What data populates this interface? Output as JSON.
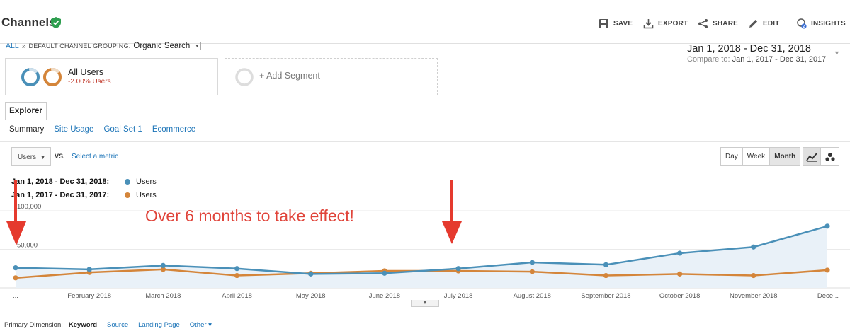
{
  "header": {
    "title": "Channels",
    "buttons": [
      {
        "label": "SAVE",
        "icon": "save-icon"
      },
      {
        "label": "EXPORT",
        "icon": "export-icon"
      },
      {
        "label": "SHARE",
        "icon": "share-icon"
      },
      {
        "label": "EDIT",
        "icon": "edit-icon"
      },
      {
        "label": "INSIGHTS",
        "icon": "insights-icon",
        "badge": "2"
      }
    ]
  },
  "breadcrumb": {
    "all": "ALL",
    "separator": "»",
    "grouping": "DEFAULT CHANNEL GROUPING:",
    "value": "Organic Search"
  },
  "date_range": {
    "current": "Jan 1, 2018 - Dec 31, 2018",
    "compare_label": "Compare to:",
    "compare": "Jan 1, 2017 - Dec 31, 2017"
  },
  "segments": {
    "primary": {
      "label": "All Users",
      "sub": "-2.00% Users"
    },
    "add": "+ Add Segment"
  },
  "tabs": {
    "explorer": "Explorer"
  },
  "subnav": [
    "Summary",
    "Site Usage",
    "Goal Set 1",
    "Ecommerce"
  ],
  "controls": {
    "metric": "Users",
    "vs": "VS.",
    "select_metric": "Select a metric",
    "periods": [
      "Day",
      "Week",
      "Month"
    ]
  },
  "legend": [
    {
      "range": "Jan 1, 2018 - Dec 31, 2018:",
      "metric": "Users",
      "color": "#4a90b8"
    },
    {
      "range": "Jan 1, 2017 - Dec 31, 2017:",
      "metric": "Users",
      "color": "#d4853a"
    }
  ],
  "annotation": "Over 6 months to take effect!",
  "chart_data": {
    "type": "line",
    "y_ticks": [
      "100,000",
      "50,000"
    ],
    "ylim": [
      0,
      100000
    ],
    "x_labels": [
      "...",
      "February 2018",
      "March 2018",
      "April 2018",
      "May 2018",
      "June 2018",
      "July 2018",
      "August 2018",
      "September 2018",
      "October 2018",
      "November 2018",
      "Dece..."
    ],
    "series": [
      {
        "name": "Users",
        "period": "2018",
        "color": "#4a90b8",
        "values": [
          26000,
          24000,
          29000,
          25000,
          18000,
          19000,
          25000,
          33000,
          30000,
          45000,
          53000,
          80000
        ]
      },
      {
        "name": "Users",
        "period": "2017",
        "color": "#d4853a",
        "values": [
          13000,
          20000,
          24000,
          16000,
          19000,
          22000,
          22000,
          21000,
          16000,
          18000,
          16000,
          23000
        ]
      }
    ]
  },
  "primary_dimension": {
    "label": "Primary Dimension:",
    "selected": "Keyword",
    "options": [
      "Source",
      "Landing Page",
      "Other"
    ]
  }
}
